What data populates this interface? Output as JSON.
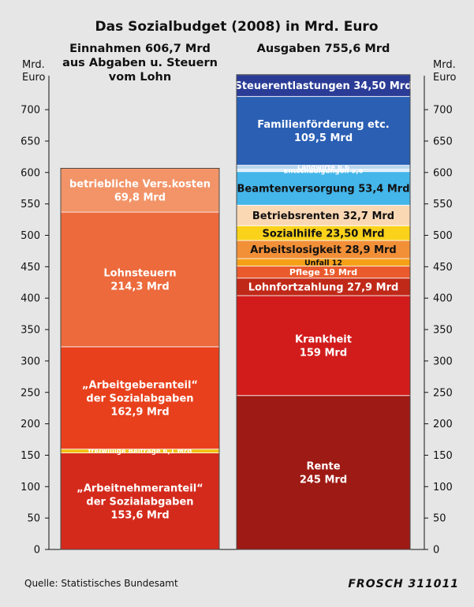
{
  "chart_data": {
    "type": "stacked-bar",
    "title": "Das Sozialbudget (2008) in Mrd. Euro",
    "unit_label": [
      "Mrd.",
      "Euro"
    ],
    "ylim": [
      0,
      700
    ],
    "yticks": [
      0,
      50,
      100,
      150,
      200,
      250,
      300,
      350,
      400,
      450,
      500,
      550,
      600,
      650,
      700
    ],
    "source": "Quelle: Statistisches Bundesamt",
    "signature": "FROSCH 311011",
    "columns": [
      {
        "header": [
          "Einnahmen 606,7 Mrd",
          "aus Abgaben u. Steuern",
          "vom Lohn"
        ],
        "segments": [
          {
            "lines": [
              "„Arbeitnehmeranteil“",
              "der Sozialabgaben",
              "153,6 Mrd"
            ],
            "value": 153.6,
            "color": "#d42a1c",
            "text": "light"
          },
          {
            "lines": [
              "freiwillige Beiträge 6,1 Mrd"
            ],
            "value": 6.1,
            "color": "#f2c010",
            "text": "light"
          },
          {
            "lines": [
              "„Arbeitgeberanteil“",
              "der Sozialabgaben",
              "162,9 Mrd"
            ],
            "value": 162.9,
            "color": "#e8401c",
            "text": "light"
          },
          {
            "lines": [
              "Lohnsteuern",
              "214,3 Mrd"
            ],
            "value": 214.3,
            "color": "#ec6a3c",
            "text": "light"
          },
          {
            "lines": [
              "betriebliche Vers.kosten",
              "69,8 Mrd"
            ],
            "value": 69.8,
            "color": "#f29468",
            "text": "light"
          }
        ]
      },
      {
        "header": [
          "Ausgaben 755,6 Mrd"
        ],
        "segments": [
          {
            "lines": [
              "Rente",
              "245 Mrd"
            ],
            "value": 245,
            "color": "#9e1a14",
            "text": "light"
          },
          {
            "lines": [
              "Krankheit",
              "159 Mrd"
            ],
            "value": 159,
            "color": "#d21c1c",
            "text": "light"
          },
          {
            "lines": [
              "Lohnfortzahlung 27,9 Mrd"
            ],
            "value": 27.9,
            "color": "#c02818",
            "text": "light"
          },
          {
            "lines": [
              "Pflege 19 Mrd"
            ],
            "value": 19,
            "color": "#ea5a2c",
            "text": "light"
          },
          {
            "lines": [
              "Unfall 12"
            ],
            "value": 12,
            "color": "#f6a018",
            "text": "dark"
          },
          {
            "lines": [
              "Arbeitslosigkeit 28,9 Mrd"
            ],
            "value": 28.9,
            "color": "#f29038",
            "text": "dark"
          },
          {
            "lines": [
              "Sozialhilfe 23,50 Mrd"
            ],
            "value": 23.5,
            "color": "#fad21a",
            "text": "dark"
          },
          {
            "lines": [
              "Betriebsrenten 32,7 Mrd"
            ],
            "value": 32.7,
            "color": "#fbd8b4",
            "text": "dark"
          },
          {
            "lines": [
              "Beamtenversorgung 53,4 Mrd"
            ],
            "value": 53.4,
            "color": "#44b6ea",
            "text": "dark"
          },
          {
            "lines": [
              "Entschädigungen 3,6"
            ],
            "value": 3.6,
            "color": "#d8eaf6",
            "text": "light"
          },
          {
            "lines": [
              "Landwirte 6,6"
            ],
            "value": 6.6,
            "color": "#b8d6ee",
            "text": "light"
          },
          {
            "lines": [
              "Familienförderung etc.",
              "109,5 Mrd"
            ],
            "value": 109.5,
            "color": "#2a5fb4",
            "text": "light"
          },
          {
            "lines": [
              "Steuerentlastungen 34,50 Mrd"
            ],
            "value": 34.5,
            "color": "#2a3c96",
            "text": "light"
          }
        ]
      }
    ]
  }
}
